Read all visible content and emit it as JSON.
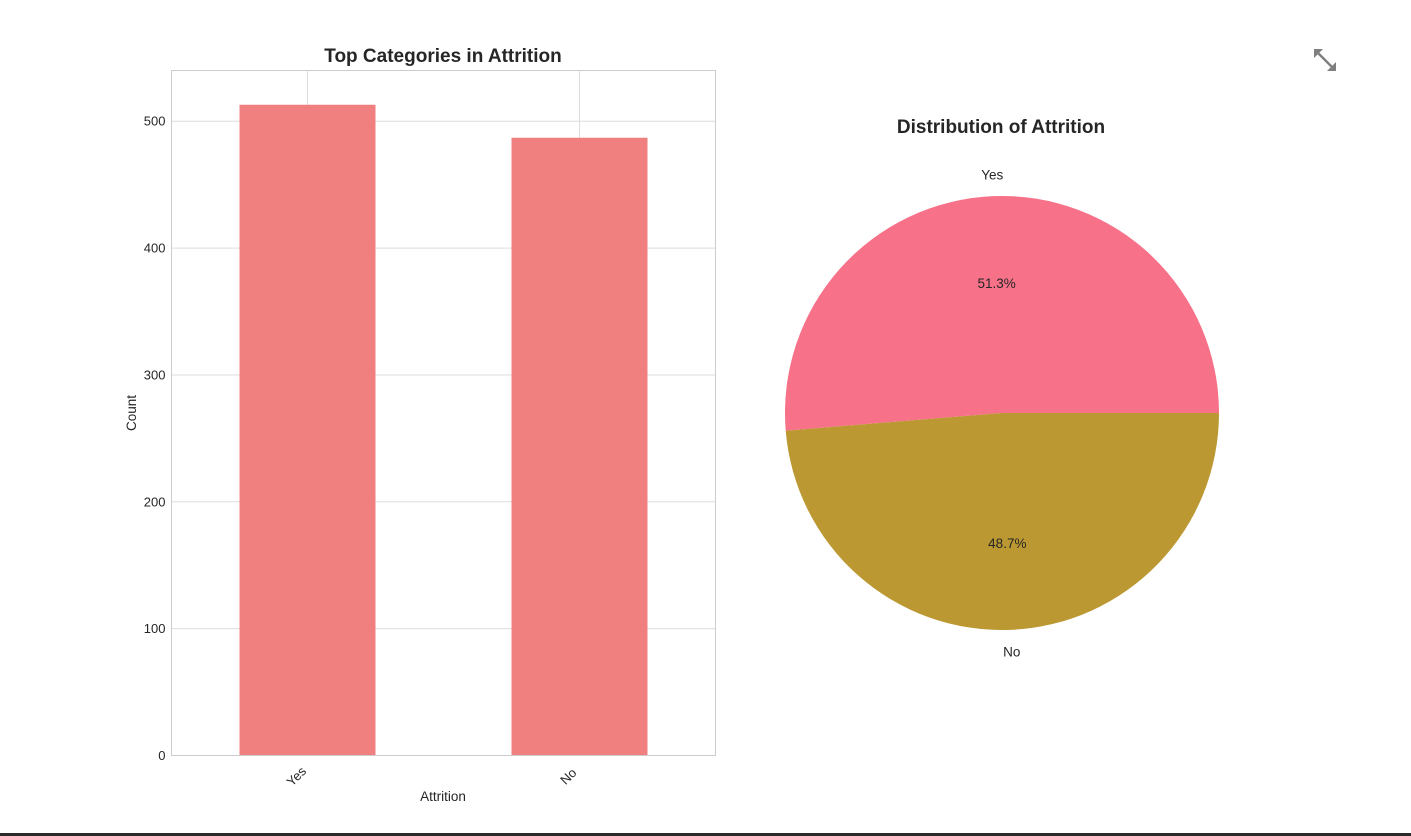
{
  "toolbar": {
    "expand_icon": "expand-arrows-icon",
    "expand_color": "#7f7f7f"
  },
  "chart_data": [
    {
      "type": "bar",
      "title": "Top Categories in Attrition",
      "categories": [
        "Yes",
        "No"
      ],
      "values": [
        513,
        487
      ],
      "xlabel": "Attrition",
      "ylabel": "Count",
      "ylim": [
        0,
        540
      ],
      "yticks": [
        0,
        100,
        200,
        300,
        400,
        500
      ],
      "grid": true,
      "color": "#f08080"
    },
    {
      "type": "pie",
      "title": "Distribution of Attrition",
      "labels": [
        "Yes",
        "No"
      ],
      "values": [
        51.3,
        48.7
      ],
      "pct_labels": [
        "51.3%",
        "48.7%"
      ],
      "colors": [
        "#f77189",
        "#bb9832"
      ]
    }
  ]
}
